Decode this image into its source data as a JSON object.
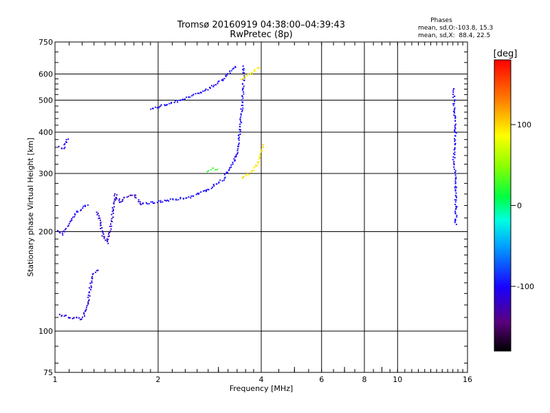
{
  "chart_data": {
    "type": "scatter",
    "title": "Tromsø 20160919 04:38:00–04:39:43",
    "subtitle": "RwPretec (8p)",
    "xlabel": "Frequency [MHz]",
    "ylabel": "Stationary phase Virtual Height [km]",
    "x_scale": "log",
    "y_scale": "log",
    "xlim": [
      1,
      16
    ],
    "ylim": [
      75,
      750
    ],
    "xticks": [
      1,
      2,
      4,
      6,
      8,
      10,
      16
    ],
    "xtick_labels": [
      "1",
      "2",
      "4",
      "6",
      "8",
      "10",
      "16"
    ],
    "xtick_minor": [
      3,
      5,
      7,
      9
    ],
    "yticks": [
      75,
      100,
      200,
      300,
      400,
      500,
      600,
      750
    ],
    "ytick_labels": [
      "75",
      "100",
      "200",
      "300",
      "400",
      "500",
      "600",
      "750"
    ],
    "grid": true,
    "stats": {
      "title": "Phases",
      "line1": "mean, sd,O:-103.8, 15.3",
      "line2": "mean, sd,X:  88.4, 22.5"
    },
    "colorbar": {
      "label": "[deg]",
      "range": [
        -180,
        180
      ],
      "ticks": [
        -100,
        0,
        100
      ],
      "tick_labels": [
        "-100",
        "0",
        "100"
      ],
      "colormap": "rainbow"
    },
    "traces": [
      {
        "desc": "o-low",
        "phase": -112,
        "points": [
          [
            1.03,
            112
          ],
          [
            1.08,
            111
          ],
          [
            1.12,
            109
          ],
          [
            1.16,
            110
          ],
          [
            1.19,
            108
          ],
          [
            1.22,
            112
          ],
          [
            1.25,
            124
          ],
          [
            1.29,
            148
          ],
          [
            1.32,
            152
          ],
          [
            1.35,
            152
          ]
        ]
      },
      {
        "desc": "o-E",
        "phase": -105,
        "points": [
          [
            1.02,
            200
          ],
          [
            1.05,
            196
          ],
          [
            1.08,
            205
          ],
          [
            1.11,
            215
          ],
          [
            1.15,
            228
          ],
          [
            1.2,
            236
          ],
          [
            1.25,
            242
          ]
        ]
      },
      {
        "desc": "o-E-upper",
        "phase": -104,
        "points": [
          [
            1.03,
            360
          ],
          [
            1.06,
            358
          ],
          [
            1.08,
            375
          ],
          [
            1.1,
            385
          ]
        ]
      },
      {
        "desc": "o-F1",
        "phase": -115,
        "points": [
          [
            1.33,
            230
          ],
          [
            1.38,
            195
          ],
          [
            1.42,
            185
          ],
          [
            1.45,
            200
          ],
          [
            1.5,
            260
          ],
          [
            1.55,
            245
          ],
          [
            1.6,
            255
          ],
          [
            1.7,
            258
          ],
          [
            1.8,
            240
          ]
        ]
      },
      {
        "desc": "o-F2",
        "phase": -100,
        "points": [
          [
            1.8,
            243
          ],
          [
            2,
            246
          ],
          [
            2.2,
            250
          ],
          [
            2.5,
            255
          ],
          [
            2.8,
            268
          ],
          [
            3.1,
            288
          ],
          [
            3.3,
            320
          ],
          [
            3.4,
            345
          ],
          [
            3.45,
            380
          ],
          [
            3.5,
            450
          ],
          [
            3.55,
            540
          ],
          [
            3.55,
            640
          ]
        ]
      },
      {
        "desc": "o-F2-upper",
        "phase": -98,
        "points": [
          [
            1.9,
            470
          ],
          [
            2.2,
            490
          ],
          [
            2.5,
            515
          ],
          [
            2.8,
            540
          ],
          [
            3.1,
            580
          ],
          [
            3.3,
            620
          ],
          [
            3.4,
            635
          ]
        ]
      },
      {
        "desc": "x-F2",
        "phase": 95,
        "points": [
          [
            3.5,
            292
          ],
          [
            3.7,
            300
          ],
          [
            3.85,
            312
          ],
          [
            3.95,
            330
          ],
          [
            4.05,
            368
          ]
        ]
      },
      {
        "desc": "x-upper",
        "phase": 90,
        "points": [
          [
            3.5,
            580
          ],
          [
            3.8,
            610
          ],
          [
            4.0,
            635
          ]
        ]
      },
      {
        "desc": "green-patch",
        "phase": 30,
        "points": [
          [
            2.8,
            305
          ],
          [
            2.9,
            310
          ],
          [
            3.0,
            305
          ]
        ]
      },
      {
        "desc": "scatter-right",
        "phase": -100,
        "points": [
          [
            14.6,
            540
          ],
          [
            14.6,
            470
          ],
          [
            14.8,
            430
          ],
          [
            14.6,
            335
          ],
          [
            14.7,
            310
          ],
          [
            14.8,
            270
          ],
          [
            14.8,
            230
          ],
          [
            14.8,
            208
          ]
        ]
      }
    ]
  }
}
